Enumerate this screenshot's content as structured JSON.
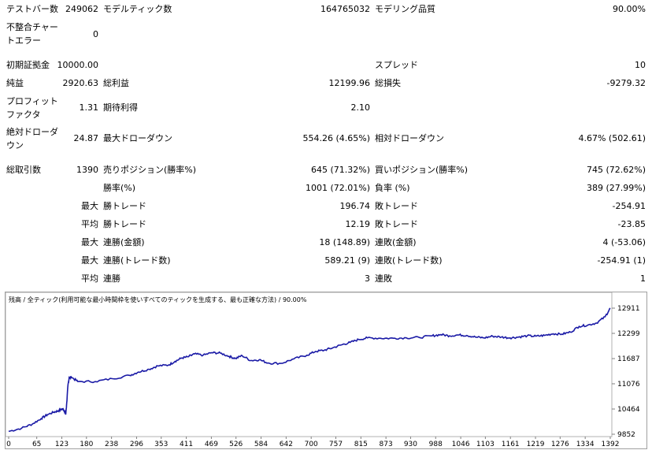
{
  "report": {
    "bars_label": "テストバー数",
    "bars_value": "249062",
    "ticks_label": "モデルティック数",
    "ticks_value": "164765032",
    "quality_label": "モデリング品質",
    "quality_value": "90.00%",
    "mismatch_label": "不整合チャートエラー",
    "mismatch_value": "0",
    "deposit_label": "初期証拠金",
    "deposit_value": "10000.00",
    "spread_label": "スプレッド",
    "spread_value": "10",
    "net_label": "純益",
    "net_value": "2920.63",
    "gross_profit_label": "総利益",
    "gross_profit_value": "12199.96",
    "gross_loss_label": "総損失",
    "gross_loss_value": "-9279.32",
    "pf_label": "プロフィットファクタ",
    "pf_value": "1.31",
    "expected_label": "期待利得",
    "expected_value": "2.10",
    "abs_dd_label": "絶対ドローダウン",
    "abs_dd_value": "24.87",
    "max_dd_label": "最大ドローダウン",
    "max_dd_value": "554.26 (4.65%)",
    "rel_dd_label": "相対ドローダウン",
    "rel_dd_value": "4.67% (502.61)",
    "total_trades_label": "総取引数",
    "total_trades_value": "1390",
    "short_label": "売りポジション(勝率%)",
    "short_value": "645 (71.32%)",
    "long_label": "買いポジション(勝率%)",
    "long_value": "745 (72.62%)",
    "win_rate_label": "勝率(%)",
    "win_rate_value": "1001 (72.01%)",
    "loss_rate_label": "負率 (%)",
    "loss_rate_value": "389 (27.99%)",
    "max_label": "最大",
    "avg_label": "平均",
    "win_trade_label": "勝トレード",
    "loss_trade_label": "敗トレード",
    "max_win_value": "196.74",
    "max_loss_value": "-254.91",
    "avg_win_value": "12.19",
    "avg_loss_value": "-23.85",
    "consec_win_money_label": "連勝(金額)",
    "consec_win_money_value": "18 (148.89)",
    "consec_loss_money_label": "連敗(金額)",
    "consec_loss_money_value": "4 (-53.06)",
    "consec_win_count_label": "連勝(トレード数)",
    "consec_win_count_value": "589.21 (9)",
    "consec_loss_count_label": "連敗(トレード数)",
    "consec_loss_count_value": "-254.91 (1)",
    "avg_consec_win_label": "連勝",
    "avg_consec_win_value": "3",
    "avg_consec_loss_label": "連敗",
    "avg_consec_loss_value": "1"
  },
  "chart_header": "残高 / 全ティック(利用可能な最小時間枠を使いすべてのティックを生成する、最も正確な方法) / 90.00%",
  "chart_data": {
    "type": "line",
    "line_color": "#1a1aa6",
    "y_ticks": [
      "12911",
      "12299",
      "11687",
      "11076",
      "10464",
      "9852"
    ],
    "y_range": [
      9852,
      12911
    ],
    "x_ticks": [
      "0",
      "65",
      "123",
      "180",
      "238",
      "296",
      "353",
      "411",
      "469",
      "526",
      "584",
      "642",
      "700",
      "757",
      "815",
      "873",
      "930",
      "988",
      "1046",
      "1103",
      "1161",
      "1219",
      "1276",
      "1334",
      "1392"
    ],
    "x_range": [
      0,
      1392
    ],
    "series": [
      {
        "x": [
          0,
          30,
          55,
          75,
          90,
          105,
          115,
          125,
          130,
          132,
          134,
          137,
          140,
          145,
          160,
          200,
          240,
          280,
          300,
          325,
          345,
          370,
          385,
          400,
          415,
          430,
          450,
          470,
          490,
          510,
          525,
          540,
          560,
          580,
          600,
          630,
          660,
          690,
          710,
          730,
          750,
          770,
          790,
          810,
          830,
          860,
          890,
          920,
          950,
          980,
          1000,
          1020,
          1040,
          1060,
          1080,
          1100,
          1120,
          1140,
          1160,
          1180,
          1200,
          1220,
          1240,
          1260,
          1280,
          1300,
          1320,
          1340,
          1360,
          1380,
          1392
        ],
        "y": [
          9920,
          10000,
          10100,
          10230,
          10330,
          10390,
          10420,
          10470,
          10400,
          10330,
          10560,
          11020,
          11220,
          11240,
          11130,
          11130,
          11200,
          11280,
          11360,
          11430,
          11510,
          11530,
          11620,
          11700,
          11730,
          11800,
          11770,
          11830,
          11820,
          11740,
          11690,
          11760,
          11640,
          11660,
          11580,
          11570,
          11680,
          11770,
          11860,
          11890,
          11950,
          12020,
          12080,
          12150,
          12190,
          12180,
          12180,
          12190,
          12200,
          12240,
          12270,
          12240,
          12260,
          12250,
          12210,
          12190,
          12230,
          12210,
          12190,
          12210,
          12240,
          12230,
          12250,
          12290,
          12280,
          12330,
          12470,
          12500,
          12550,
          12700,
          12911
        ]
      }
    ]
  }
}
